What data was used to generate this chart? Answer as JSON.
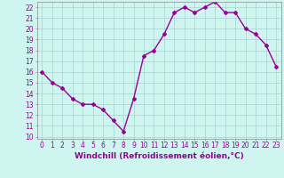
{
  "x": [
    0,
    1,
    2,
    3,
    4,
    5,
    6,
    7,
    8,
    9,
    10,
    11,
    12,
    13,
    14,
    15,
    16,
    17,
    18,
    19,
    20,
    21,
    22,
    23
  ],
  "y": [
    16.0,
    15.0,
    14.5,
    13.5,
    13.0,
    13.0,
    12.5,
    11.5,
    10.5,
    13.5,
    17.5,
    18.0,
    19.5,
    21.5,
    22.0,
    21.5,
    22.0,
    22.5,
    21.5,
    21.5,
    20.0,
    19.5,
    18.5,
    16.5
  ],
  "line_color": "#990099",
  "marker": "D",
  "marker_size": 2,
  "linewidth": 1.0,
  "xlabel": "Windchill (Refroidissement éolien,°C)",
  "xlabel_fontsize": 6.5,
  "ylabel_ticks": [
    10,
    11,
    12,
    13,
    14,
    15,
    16,
    17,
    18,
    19,
    20,
    21,
    22
  ],
  "xlim": [
    -0.5,
    23.5
  ],
  "ylim": [
    9.8,
    22.5
  ],
  "background_color": "#cef5f0",
  "grid_color": "#aacfcf",
  "tick_fontsize": 5.5,
  "tick_color": "#990099",
  "label_color": "#990099"
}
